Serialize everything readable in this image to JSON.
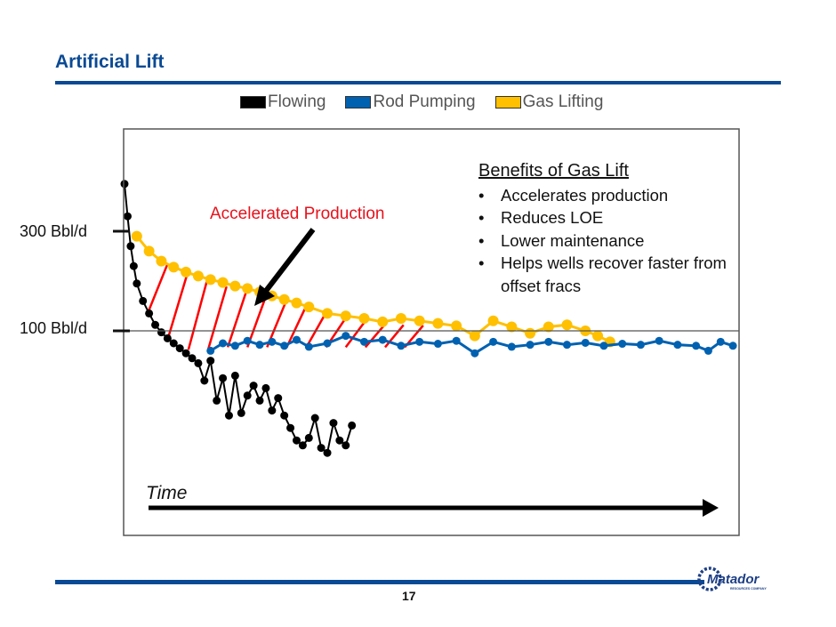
{
  "slide": {
    "title": "Artificial Lift",
    "page_number": "17",
    "logo": {
      "name": "Matador",
      "subtitle": "RESOURCES COMPANY",
      "color": "#1d3f85"
    }
  },
  "colors": {
    "brand_blue": "#0a4a94",
    "flowing": "#000000",
    "rod_pumping": "#0061b0",
    "gas_lifting": "#ffc000",
    "hatch": "#ff0000",
    "annotation": "#e8121c"
  },
  "benefits": {
    "title": "Benefits of Gas Lift",
    "items": [
      "Accelerates production",
      "Reduces LOE",
      "Lower maintenance",
      "Helps wells recover faster from offset fracs"
    ]
  },
  "chart_data": {
    "type": "line",
    "title": "",
    "xlabel": "Time",
    "ylabel": "Bbl/d",
    "x_units": "relative time (0-100, unlabeled)",
    "xlim": [
      0,
      100
    ],
    "ylim": [
      -410,
      400
    ],
    "grid": false,
    "reference_lines": [
      {
        "y": 100,
        "label": "100 Bbl/d"
      }
    ],
    "y_ticks": [
      {
        "value": 300,
        "label": "300 Bbl/d"
      },
      {
        "value": 100,
        "label": "100 Bbl/d"
      }
    ],
    "legend": {
      "position": "top",
      "entries": [
        "Flowing",
        "Rod Pumping",
        "Gas Lifting"
      ]
    },
    "annotations": [
      {
        "text": "Accelerated Production",
        "type": "arrow",
        "target": "area between Gas Lifting and Flowing curves"
      },
      {
        "text": "Time",
        "type": "axis-arrow"
      }
    ],
    "series": [
      {
        "name": "Flowing",
        "color": "#000000",
        "x": [
          0,
          0.5,
          1,
          1.5,
          2,
          3,
          4,
          5,
          6,
          7,
          8,
          9,
          10,
          11,
          12,
          13,
          14,
          15,
          16,
          17,
          18,
          19,
          20,
          21,
          22,
          23,
          24,
          25,
          26,
          27,
          28,
          29,
          30,
          31,
          32,
          33,
          34,
          35,
          36,
          37
        ],
        "y": [
          395,
          330,
          270,
          230,
          195,
          160,
          135,
          112,
          97,
          85,
          75,
          65,
          55,
          45,
          35,
          0,
          40,
          -40,
          5,
          -70,
          10,
          -65,
          -30,
          -10,
          -40,
          -15,
          -60,
          -35,
          -70,
          -95,
          -120,
          -130,
          -115,
          -75,
          -135,
          -145,
          -85,
          -120,
          -130,
          -90
        ]
      },
      {
        "name": "Rod Pumping",
        "color": "#0061b0",
        "x": [
          14,
          16,
          18,
          20,
          22,
          24,
          26,
          28,
          30,
          33,
          36,
          39,
          42,
          45,
          48,
          51,
          54,
          57,
          60,
          63,
          66,
          69,
          72,
          75,
          78,
          81,
          84,
          87,
          90,
          93,
          95,
          97,
          99
        ],
        "y": [
          60,
          75,
          70,
          80,
          72,
          78,
          70,
          82,
          68,
          75,
          90,
          78,
          82,
          70,
          78,
          74,
          80,
          55,
          78,
          68,
          72,
          78,
          72,
          76,
          70,
          74,
          72,
          80,
          72,
          70,
          60,
          78,
          70
        ]
      },
      {
        "name": "Gas Lifting",
        "color": "#ffc000",
        "x": [
          2,
          4,
          6,
          8,
          10,
          12,
          14,
          16,
          18,
          20,
          22,
          24,
          26,
          28,
          30,
          33,
          36,
          39,
          42,
          45,
          48,
          51,
          54,
          57,
          60,
          63,
          66,
          69,
          72,
          75,
          77,
          79
        ],
        "y": [
          290,
          260,
          240,
          228,
          218,
          210,
          203,
          197,
          190,
          185,
          178,
          170,
          163,
          156,
          148,
          135,
          130,
          125,
          118,
          125,
          120,
          115,
          110,
          90,
          120,
          108,
          95,
          108,
          112,
          100,
          90,
          78
        ]
      }
    ]
  }
}
